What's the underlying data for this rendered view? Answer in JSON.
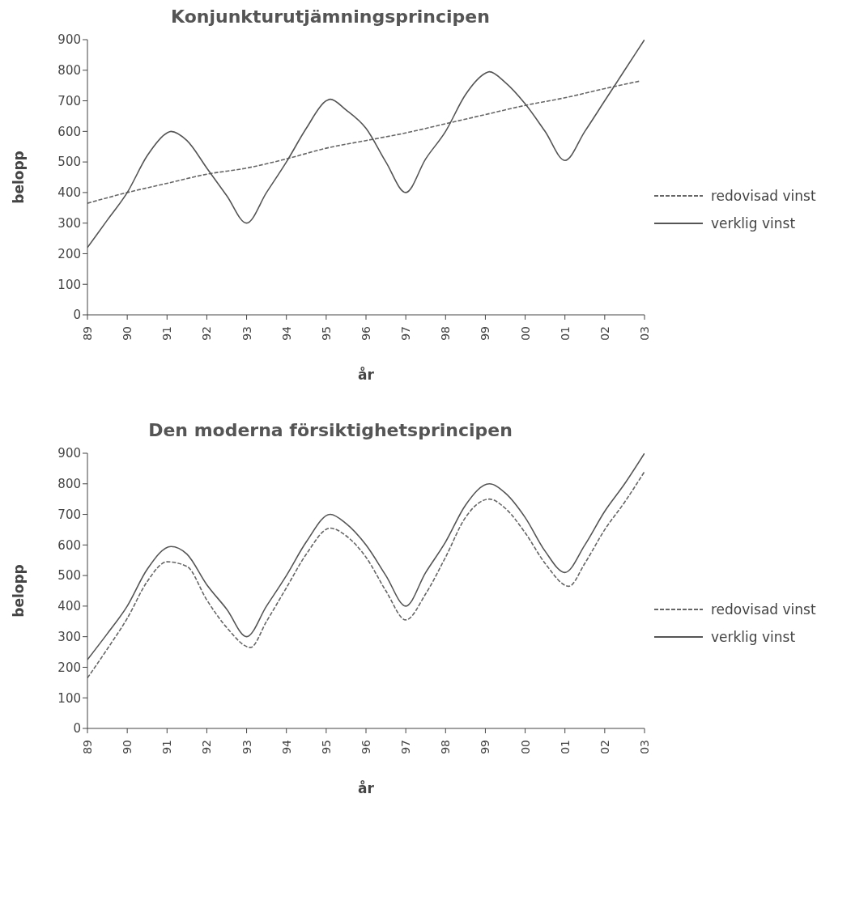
{
  "chart_data": [
    {
      "type": "line",
      "title": "Konjunkturutjämningsprincipen",
      "xlabel": "år",
      "ylabel": "belopp",
      "xlim": [
        1989,
        2003
      ],
      "ylim": [
        0,
        900
      ],
      "xticks": [
        {
          "value": 1989,
          "label": "89"
        },
        {
          "value": 1990,
          "label": "90"
        },
        {
          "value": 1991,
          "label": "91"
        },
        {
          "value": 1992,
          "label": "92"
        },
        {
          "value": 1993,
          "label": "93"
        },
        {
          "value": 1994,
          "label": "94"
        },
        {
          "value": 1995,
          "label": "95"
        },
        {
          "value": 1996,
          "label": "96"
        },
        {
          "value": 1997,
          "label": "97"
        },
        {
          "value": 1998,
          "label": "98"
        },
        {
          "value": 1999,
          "label": "99"
        },
        {
          "value": 2000,
          "label": "00"
        },
        {
          "value": 2001,
          "label": "01"
        },
        {
          "value": 2002,
          "label": "02"
        },
        {
          "value": 2003,
          "label": "03"
        }
      ],
      "yticks": [
        0,
        100,
        200,
        300,
        400,
        500,
        600,
        700,
        800,
        900
      ],
      "grid": false,
      "legend": "right",
      "marker": "none",
      "series": [
        {
          "name": "redovisad vinst",
          "color": "#666666",
          "line_style": "dashed",
          "x": [
            1989,
            1990,
            1991,
            1992,
            1993,
            1994,
            1995,
            1996,
            1997,
            1998,
            1999,
            2000,
            2001,
            2002,
            2002.9
          ],
          "values": [
            365,
            400,
            430,
            460,
            480,
            510,
            545,
            570,
            595,
            625,
            655,
            685,
            710,
            740,
            765
          ]
        },
        {
          "name": "verklig vinst",
          "color": "#555555",
          "line_style": "solid",
          "x": [
            1989,
            1989.5,
            1990,
            1990.5,
            1991,
            1991.1,
            1991.5,
            1992,
            1992.5,
            1993,
            1993.5,
            1994,
            1994.5,
            1995,
            1995.1,
            1995.5,
            1996,
            1996.5,
            1997,
            1997.5,
            1998,
            1998.5,
            1999,
            1999.1,
            1999.5,
            2000,
            2000.5,
            2001,
            2001.5,
            2002,
            2002.5,
            2003
          ],
          "values": [
            220,
            310,
            400,
            520,
            595,
            600,
            570,
            480,
            390,
            300,
            400,
            500,
            610,
            700,
            705,
            670,
            610,
            500,
            400,
            510,
            600,
            720,
            790,
            795,
            760,
            690,
            600,
            505,
            600,
            700,
            800,
            900
          ]
        }
      ]
    },
    {
      "type": "line",
      "title": "Den moderna försiktighetsprincipen",
      "xlabel": "år",
      "ylabel": "belopp",
      "xlim": [
        1989,
        2003
      ],
      "ylim": [
        0,
        900
      ],
      "xticks": [
        {
          "value": 1989,
          "label": "89"
        },
        {
          "value": 1990,
          "label": "90"
        },
        {
          "value": 1991,
          "label": "91"
        },
        {
          "value": 1992,
          "label": "92"
        },
        {
          "value": 1993,
          "label": "93"
        },
        {
          "value": 1994,
          "label": "94"
        },
        {
          "value": 1995,
          "label": "95"
        },
        {
          "value": 1996,
          "label": "96"
        },
        {
          "value": 1997,
          "label": "97"
        },
        {
          "value": 1998,
          "label": "98"
        },
        {
          "value": 1999,
          "label": "99"
        },
        {
          "value": 2000,
          "label": "00"
        },
        {
          "value": 2001,
          "label": "01"
        },
        {
          "value": 2002,
          "label": "02"
        },
        {
          "value": 2003,
          "label": "03"
        }
      ],
      "yticks": [
        0,
        100,
        200,
        300,
        400,
        500,
        600,
        700,
        800,
        900
      ],
      "grid": false,
      "legend": "right",
      "marker": "none",
      "series": [
        {
          "name": "redovisad vinst",
          "color": "#666666",
          "line_style": "dashed",
          "x": [
            1989,
            1989.5,
            1990,
            1990.5,
            1991,
            1991.5,
            1992,
            1992.5,
            1993.1,
            1993.5,
            1994,
            1994.5,
            1995.1,
            1995.5,
            1996,
            1996.5,
            1997,
            1997.5,
            1998,
            1998.5,
            1999.1,
            1999.5,
            2000,
            2000.5,
            2001.1,
            2001.5,
            2002,
            2002.5,
            2003
          ],
          "values": [
            165,
            260,
            360,
            480,
            545,
            530,
            420,
            330,
            265,
            350,
            460,
            570,
            655,
            630,
            560,
            450,
            355,
            440,
            560,
            690,
            750,
            720,
            640,
            540,
            465,
            540,
            650,
            740,
            840
          ]
        },
        {
          "name": "verklig vinst",
          "color": "#555555",
          "line_style": "solid",
          "x": [
            1989,
            1989.5,
            1990,
            1990.5,
            1991.1,
            1991.5,
            1992,
            1992.5,
            1993,
            1993.5,
            1994,
            1994.5,
            1995.1,
            1995.5,
            1996,
            1996.5,
            1997,
            1997.5,
            1998,
            1998.5,
            1999.1,
            1999.5,
            2000,
            2000.5,
            2001,
            2001.5,
            2002,
            2002.5,
            2003
          ],
          "values": [
            225,
            310,
            400,
            520,
            595,
            570,
            470,
            390,
            300,
            400,
            500,
            610,
            700,
            670,
            600,
            500,
            400,
            510,
            610,
            730,
            800,
            770,
            690,
            580,
            510,
            600,
            710,
            800,
            900
          ]
        }
      ]
    }
  ]
}
